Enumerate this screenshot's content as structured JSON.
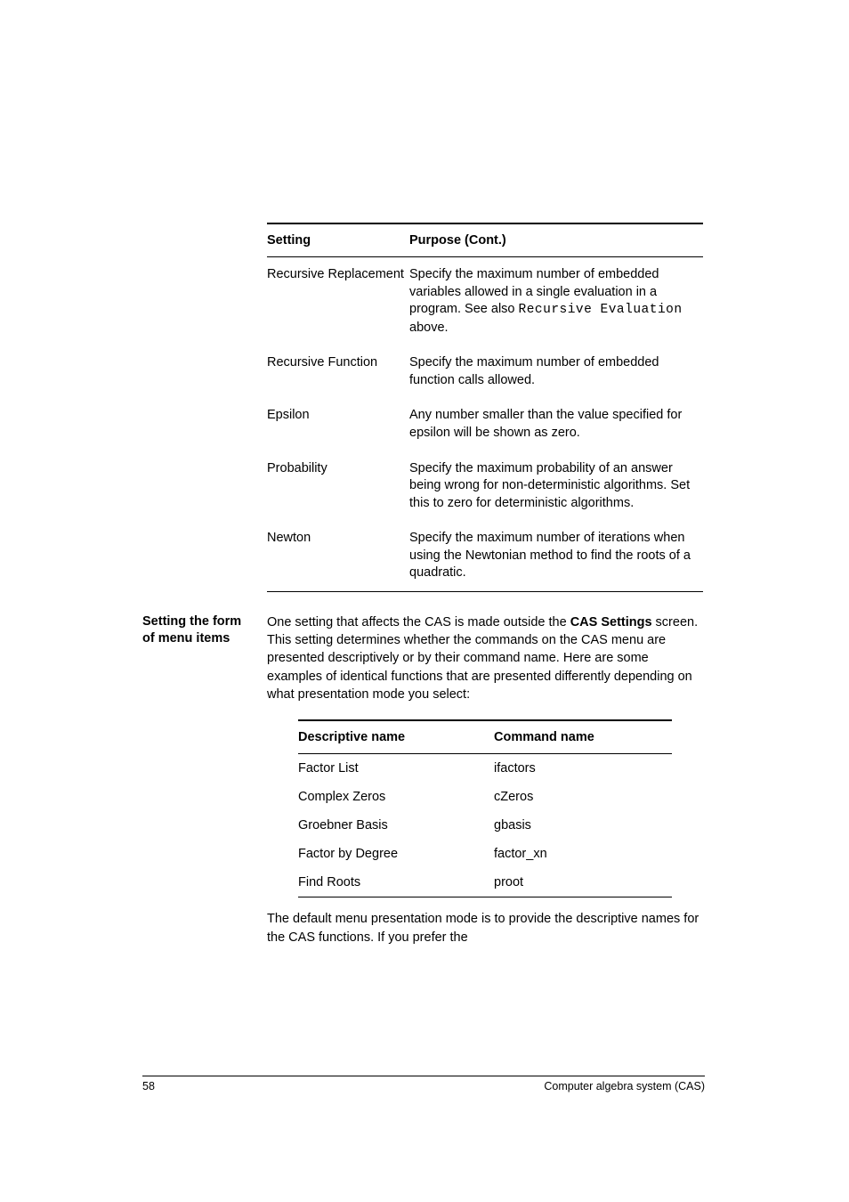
{
  "table1": {
    "headers": {
      "c1": "Setting",
      "c2": "Purpose (Cont.)"
    },
    "rows": [
      {
        "c1": "Recursive Replacement",
        "c2_pre": "Specify the maximum number of embedded variables allowed in a single evaluation in a program. See also ",
        "c2_mono": "Recursive Evaluation",
        "c2_post": " above."
      },
      {
        "c1": "Recursive Function",
        "c2": "Specify the maximum number of embedded function calls allowed."
      },
      {
        "c1": "Epsilon",
        "c2": "Any number smaller than the value specified for epsilon will be shown as zero."
      },
      {
        "c1": "Probability",
        "c2": "Specify the maximum probability of an answer being wrong for non-deterministic algorithms. Set this to zero for deterministic algorithms."
      },
      {
        "c1": "Newton",
        "c2": "Specify the maximum number of iterations when using the Newtonian method to find the roots of a quadratic."
      }
    ]
  },
  "section": {
    "side": "Setting the form of menu items",
    "p_pre": "One setting that affects the CAS is made outside the ",
    "p_b1": "CAS Settings",
    "p_post": " screen. This setting determines whether the commands on the CAS menu are presented descriptively or by their command name. Here are some examples of identical functions that are presented differently depending on what presentation mode you select:"
  },
  "table2": {
    "headers": {
      "d1": "Descriptive name",
      "d2": "Command name"
    },
    "rows": [
      {
        "d1": "Factor List",
        "d2": "ifactors"
      },
      {
        "d1": "Complex Zeros",
        "d2": "cZeros"
      },
      {
        "d1": "Groebner Basis",
        "d2": "gbasis"
      },
      {
        "d1": "Factor by Degree",
        "d2": "factor_xn"
      },
      {
        "d1": "Find Roots",
        "d2": "proot"
      }
    ]
  },
  "tail": "The default menu presentation mode is to provide the descriptive names for the CAS functions. If you prefer the",
  "footer": {
    "page": "58",
    "title": "Computer algebra system (CAS)"
  }
}
